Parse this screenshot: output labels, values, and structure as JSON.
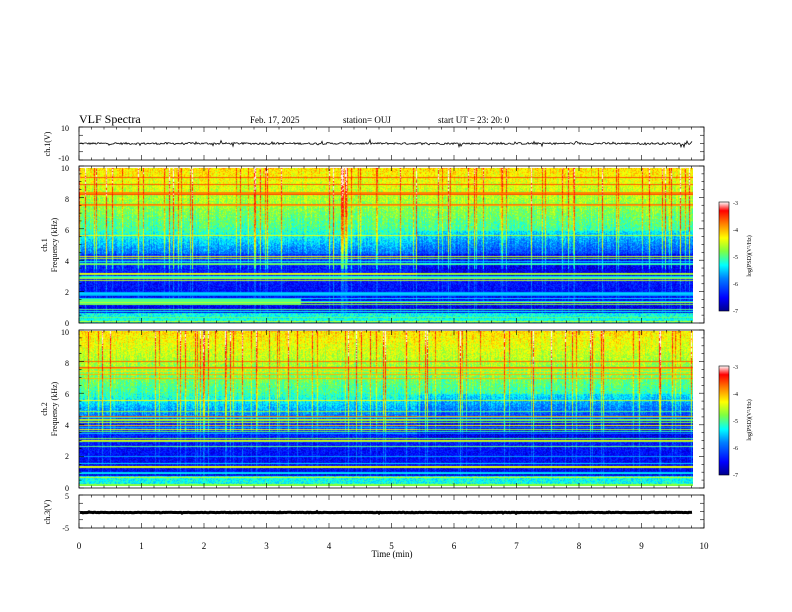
{
  "header": {
    "title": "VLF Spectra",
    "date": "Feb. 17, 2025",
    "station": "station= OUJ",
    "start": "start  UT  =   23: 20: 0"
  },
  "chart_data": [
    {
      "type": "line",
      "ylabel": "ch.1(V)",
      "ylim": [
        -10,
        10
      ],
      "yticks": [
        "10",
        "-10"
      ],
      "series": [
        {
          "approx_level": 0,
          "approx_amplitude": 1.5,
          "color": "#000000"
        }
      ]
    },
    {
      "type": "heatmap",
      "ylabel_lines": [
        "ch.1",
        "Frequency  (kHz)"
      ],
      "ylim": [
        0,
        10
      ],
      "yticks": [
        "0",
        "2",
        "4",
        "6",
        "8",
        "10"
      ],
      "xlim": [
        0,
        10
      ],
      "colorbar": {
        "label": "log(PSD)(V²/Hz)",
        "range": [
          -7,
          -3
        ],
        "ticks": [
          "-3",
          "-4",
          "-5",
          "-6",
          "-7"
        ],
        "colors": [
          "#00008c",
          "#0000ff",
          "#0080ff",
          "#00ffff",
          "#80ff40",
          "#ffff00",
          "#ff8000",
          "#ff0000",
          "#ffffff"
        ]
      }
    },
    {
      "type": "heatmap",
      "ylabel_lines": [
        "ch.2",
        "Frequency  (kHz)"
      ],
      "ylim": [
        0,
        10
      ],
      "yticks": [
        "0",
        "2",
        "4",
        "6",
        "8",
        "10"
      ],
      "xlim": [
        0,
        10
      ],
      "colorbar": {
        "label": "log(PSD)(V²/Hz)",
        "range": [
          -7,
          -3
        ],
        "ticks": [
          "-3",
          "-4",
          "-5",
          "-6",
          "-7"
        ],
        "colors": [
          "#00008c",
          "#0000ff",
          "#0080ff",
          "#00ffff",
          "#80ff40",
          "#ffff00",
          "#ff8000",
          "#ff0000",
          "#ffffff"
        ]
      }
    },
    {
      "type": "line",
      "ylabel": "ch.3(V)",
      "ylim": [
        -5,
        5
      ],
      "yticks": [
        "5",
        "0",
        "-5"
      ],
      "series": [
        {
          "approx_level": -0.3,
          "approx_amplitude": 0.15,
          "color": "#000000"
        }
      ]
    }
  ],
  "xaxis": {
    "label": "Time  (min)",
    "range": [
      0,
      10
    ],
    "ticks": [
      "0",
      "1",
      "2",
      "3",
      "4",
      "5",
      "6",
      "7",
      "8",
      "9",
      "10"
    ],
    "data_end": 9.82
  },
  "colors": {
    "background": "#ffffff",
    "axes": "#000000"
  }
}
